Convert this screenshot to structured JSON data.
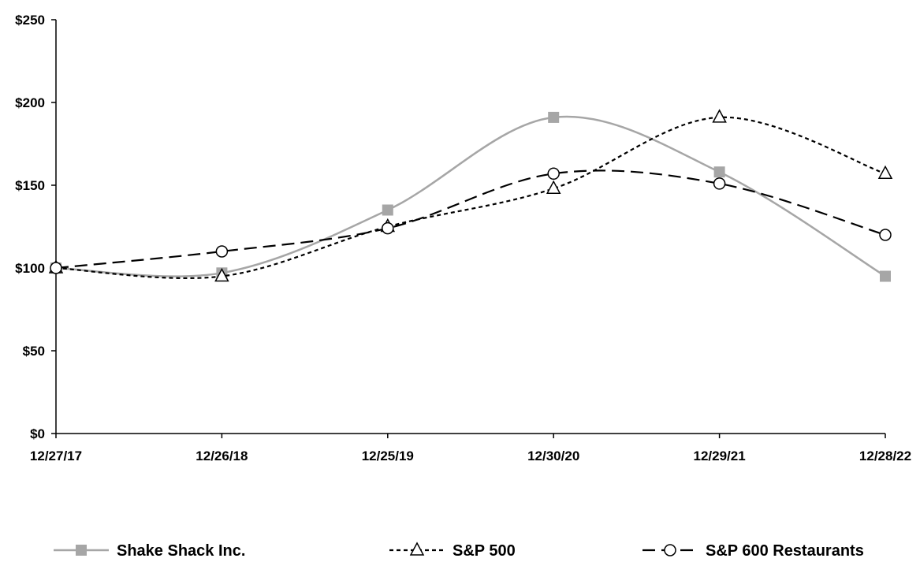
{
  "chart_data": {
    "type": "line",
    "categories": [
      "12/27/17",
      "12/26/18",
      "12/25/19",
      "12/30/20",
      "12/29/21",
      "12/28/22"
    ],
    "ylim": [
      0,
      250
    ],
    "yticks": [
      0,
      50,
      100,
      150,
      200,
      250
    ],
    "ytick_labels": [
      "$0",
      "$50",
      "$100",
      "$150",
      "$200",
      "$250"
    ],
    "grid": false,
    "legend_position": "bottom",
    "series": [
      {
        "name": "Shake Shack Inc.",
        "values": [
          100,
          97,
          135,
          191,
          158,
          95
        ],
        "color": "#a6a6a6",
        "style": "solid",
        "marker": "square"
      },
      {
        "name": "S&P 500",
        "values": [
          100,
          95,
          125,
          148,
          191,
          157
        ],
        "color": "#000000",
        "style": "short-dash",
        "marker": "triangle"
      },
      {
        "name": "S&P 600 Restaurants",
        "values": [
          100,
          110,
          124,
          157,
          151,
          120
        ],
        "color": "#000000",
        "style": "long-dash",
        "marker": "circle"
      }
    ]
  }
}
